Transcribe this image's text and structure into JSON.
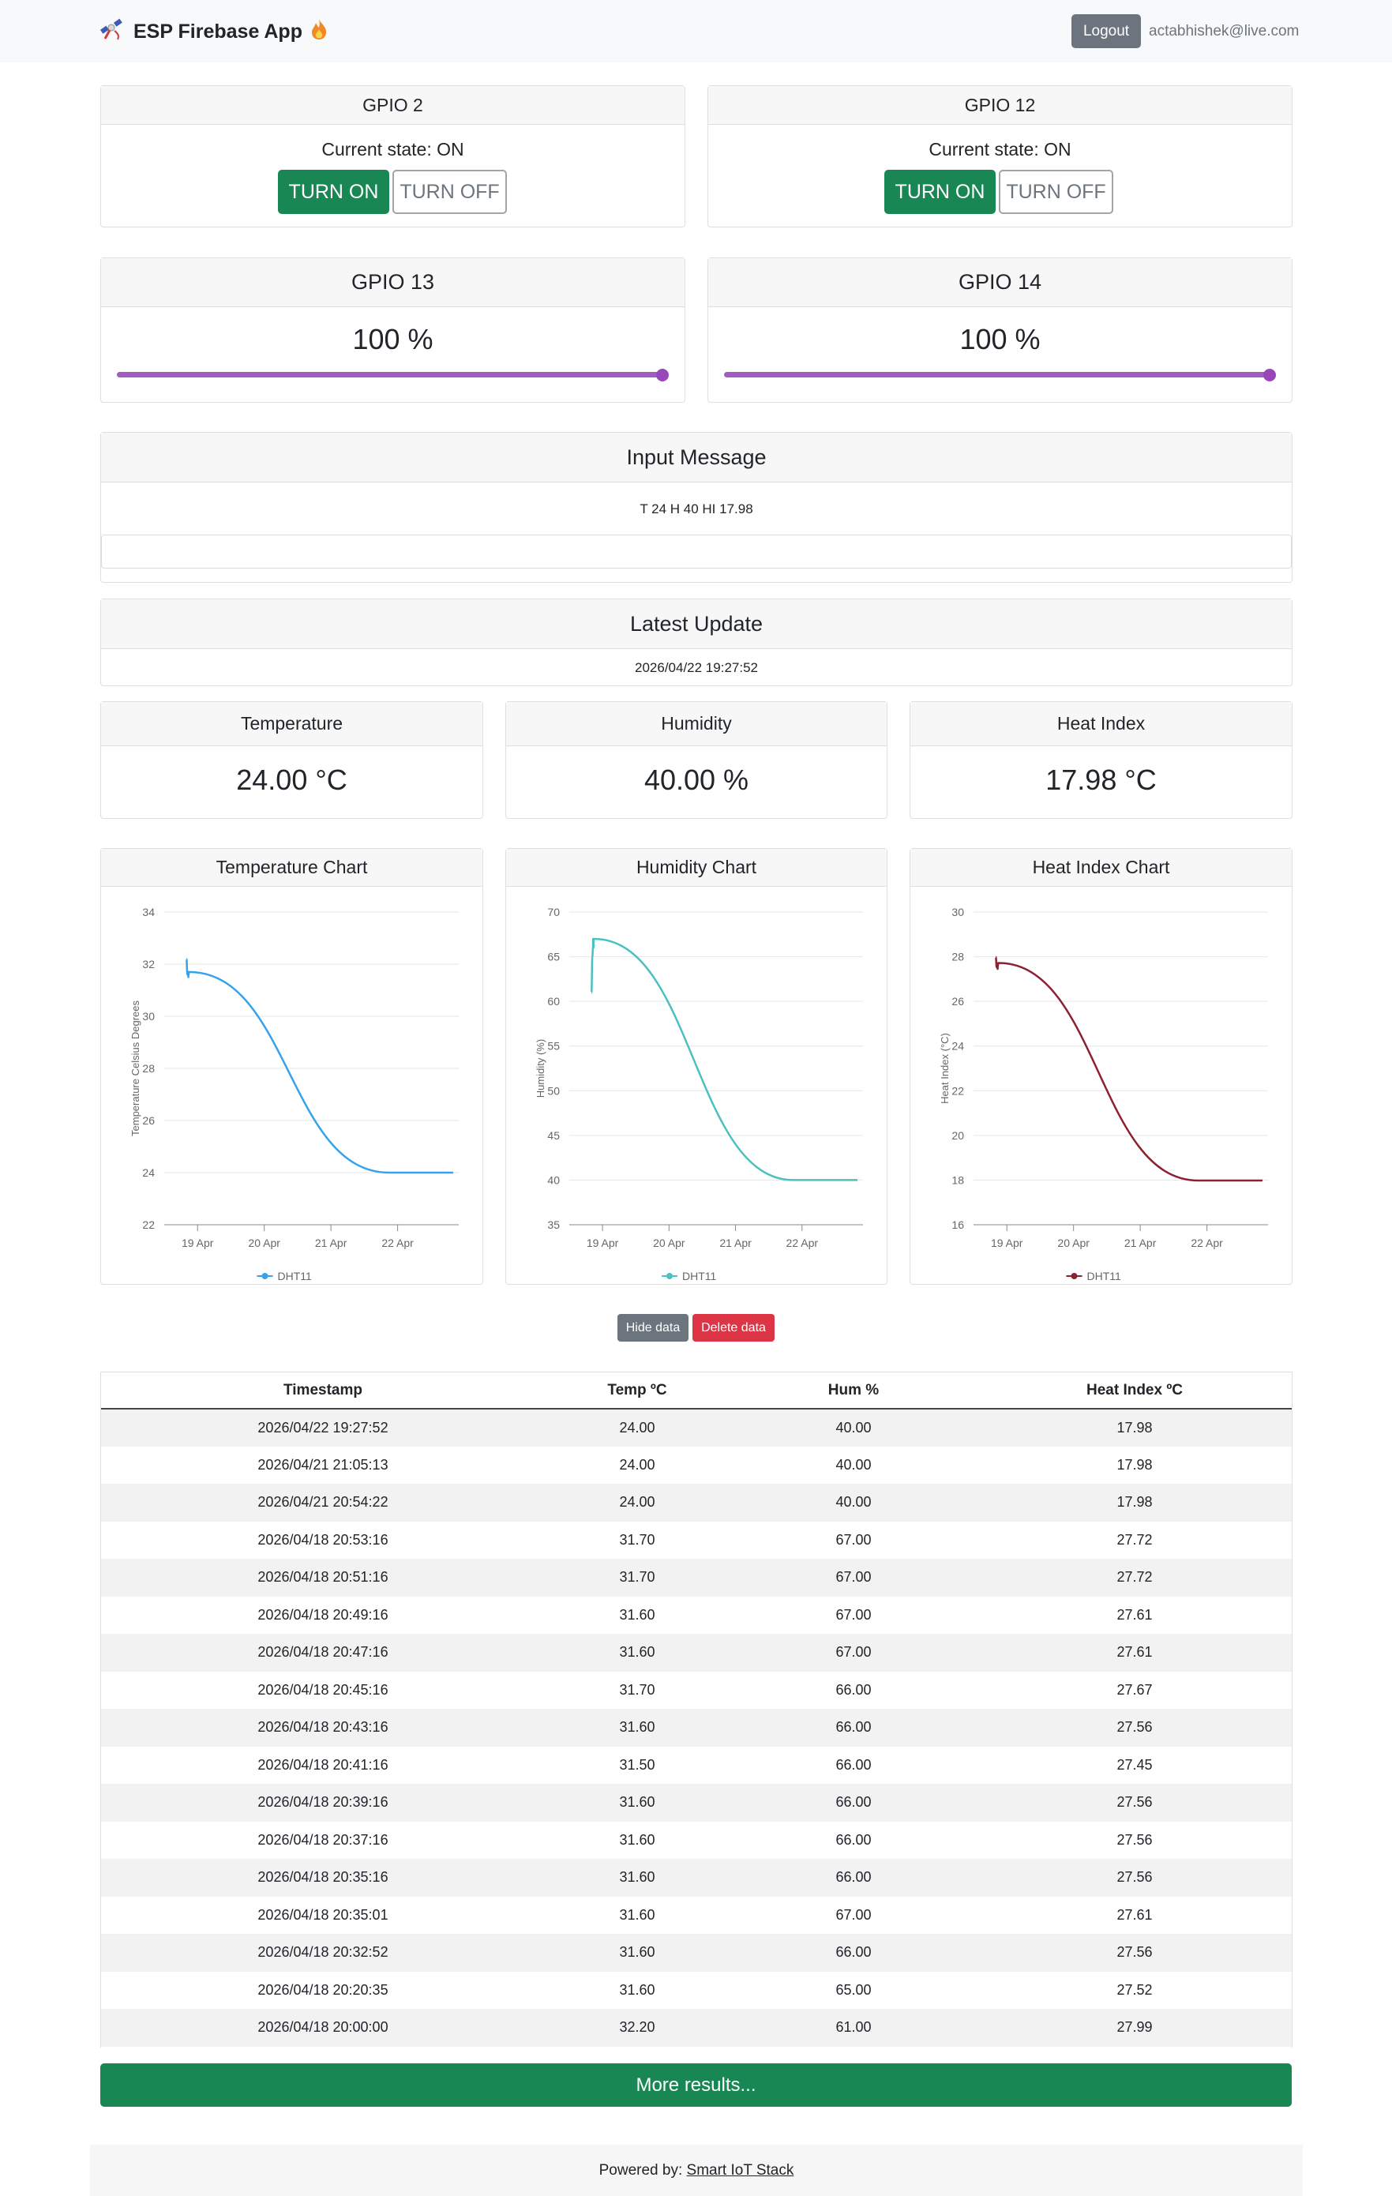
{
  "app": {
    "title": "ESP Firebase App",
    "logout_label": "Logout",
    "user_email": "actabhishek@live.com"
  },
  "gpio_switches": [
    {
      "name": "GPIO 2",
      "state_text": "Current state: ON",
      "on_label": "TURN ON",
      "off_label": "TURN OFF"
    },
    {
      "name": "GPIO 12",
      "state_text": "Current state: ON",
      "on_label": "TURN ON",
      "off_label": "TURN OFF"
    }
  ],
  "gpio_sliders": [
    {
      "name": "GPIO 13",
      "value_text": "100 %",
      "value": 100
    },
    {
      "name": "GPIO 14",
      "value_text": "100 %",
      "value": 100
    }
  ],
  "input_message": {
    "title": "Input Message",
    "text": "T 24 H 40 HI 17.98",
    "input_value": ""
  },
  "latest_update": {
    "title": "Latest Update",
    "timestamp": "2026/04/22 19:27:52"
  },
  "readings": [
    {
      "title": "Temperature",
      "value": "24.00 °C"
    },
    {
      "title": "Humidity",
      "value": "40.00 %"
    },
    {
      "title": "Heat Index",
      "value": "17.98 °C"
    }
  ],
  "chart_data": [
    {
      "type": "line",
      "title": "Temperature Chart",
      "ylabel": "Temperature Celsius Degrees",
      "ylim": [
        22,
        34
      ],
      "yticks": [
        "22",
        "24",
        "26",
        "28",
        "30",
        "32",
        "34"
      ],
      "xticks": [
        "19 Apr",
        "20 Apr",
        "21 Apr",
        "22 Apr"
      ],
      "x": [
        "2026/04/18 20:00:00",
        "2026/04/18 20:20:35",
        "2026/04/18 20:32:52",
        "2026/04/18 20:35:01",
        "2026/04/18 20:35:16",
        "2026/04/18 20:37:16",
        "2026/04/18 20:39:16",
        "2026/04/18 20:41:16",
        "2026/04/18 20:43:16",
        "2026/04/18 20:45:16",
        "2026/04/18 20:47:16",
        "2026/04/18 20:49:16",
        "2026/04/18 20:51:16",
        "2026/04/18 20:53:16",
        "2026/04/21 20:54:22",
        "2026/04/21 21:05:13",
        "2026/04/22 19:27:52"
      ],
      "series": [
        {
          "name": "DHT11",
          "color": "#36a2eb",
          "values": [
            32.2,
            31.6,
            31.6,
            31.6,
            31.6,
            31.6,
            31.6,
            31.5,
            31.6,
            31.7,
            31.6,
            31.6,
            31.7,
            31.7,
            24.0,
            24.0,
            24.0
          ]
        }
      ]
    },
    {
      "type": "line",
      "title": "Humidity Chart",
      "ylabel": "Humidity (%)",
      "ylim": [
        35,
        70
      ],
      "yticks": [
        "35",
        "40",
        "45",
        "50",
        "55",
        "60",
        "65",
        "70"
      ],
      "xticks": [
        "19 Apr",
        "20 Apr",
        "21 Apr",
        "22 Apr"
      ],
      "x": [
        "2026/04/18 20:00:00",
        "2026/04/18 20:20:35",
        "2026/04/18 20:32:52",
        "2026/04/18 20:35:01",
        "2026/04/18 20:35:16",
        "2026/04/18 20:37:16",
        "2026/04/18 20:39:16",
        "2026/04/18 20:41:16",
        "2026/04/18 20:43:16",
        "2026/04/18 20:45:16",
        "2026/04/18 20:47:16",
        "2026/04/18 20:49:16",
        "2026/04/18 20:51:16",
        "2026/04/18 20:53:16",
        "2026/04/21 20:54:22",
        "2026/04/21 21:05:13",
        "2026/04/22 19:27:52"
      ],
      "series": [
        {
          "name": "DHT11",
          "color": "#4bc0c0",
          "values": [
            61,
            65,
            66,
            67,
            66,
            66,
            66,
            66,
            66,
            66,
            67,
            67,
            67,
            67,
            40,
            40,
            40
          ]
        }
      ]
    },
    {
      "type": "line",
      "title": "Heat Index Chart",
      "ylabel": "Heat Index (°C)",
      "ylim": [
        16,
        30
      ],
      "yticks": [
        "16",
        "18",
        "20",
        "22",
        "24",
        "26",
        "28",
        "30"
      ],
      "xticks": [
        "19 Apr",
        "20 Apr",
        "21 Apr",
        "22 Apr"
      ],
      "x": [
        "2026/04/18 20:00:00",
        "2026/04/18 20:20:35",
        "2026/04/18 20:32:52",
        "2026/04/18 20:35:01",
        "2026/04/18 20:35:16",
        "2026/04/18 20:37:16",
        "2026/04/18 20:39:16",
        "2026/04/18 20:41:16",
        "2026/04/18 20:43:16",
        "2026/04/18 20:45:16",
        "2026/04/18 20:47:16",
        "2026/04/18 20:49:16",
        "2026/04/18 20:51:16",
        "2026/04/18 20:53:16",
        "2026/04/21 20:54:22",
        "2026/04/21 21:05:13",
        "2026/04/22 19:27:52"
      ],
      "series": [
        {
          "name": "DHT11",
          "color": "#8b2131",
          "values": [
            27.99,
            27.52,
            27.56,
            27.61,
            27.56,
            27.56,
            27.56,
            27.45,
            27.56,
            27.67,
            27.61,
            27.61,
            27.72,
            27.72,
            17.98,
            17.98,
            17.98
          ]
        }
      ]
    }
  ],
  "data_buttons": {
    "hide_label": "Hide data",
    "delete_label": "Delete data"
  },
  "table": {
    "headers": [
      "Timestamp",
      "Temp ºC",
      "Hum %",
      "Heat Index ºC"
    ],
    "rows": [
      [
        "2026/04/22 19:27:52",
        "24.00",
        "40.00",
        "17.98"
      ],
      [
        "2026/04/21 21:05:13",
        "24.00",
        "40.00",
        "17.98"
      ],
      [
        "2026/04/21 20:54:22",
        "24.00",
        "40.00",
        "17.98"
      ],
      [
        "2026/04/18 20:53:16",
        "31.70",
        "67.00",
        "27.72"
      ],
      [
        "2026/04/18 20:51:16",
        "31.70",
        "67.00",
        "27.72"
      ],
      [
        "2026/04/18 20:49:16",
        "31.60",
        "67.00",
        "27.61"
      ],
      [
        "2026/04/18 20:47:16",
        "31.60",
        "67.00",
        "27.61"
      ],
      [
        "2026/04/18 20:45:16",
        "31.70",
        "66.00",
        "27.67"
      ],
      [
        "2026/04/18 20:43:16",
        "31.60",
        "66.00",
        "27.56"
      ],
      [
        "2026/04/18 20:41:16",
        "31.50",
        "66.00",
        "27.45"
      ],
      [
        "2026/04/18 20:39:16",
        "31.60",
        "66.00",
        "27.56"
      ],
      [
        "2026/04/18 20:37:16",
        "31.60",
        "66.00",
        "27.56"
      ],
      [
        "2026/04/18 20:35:16",
        "31.60",
        "66.00",
        "27.56"
      ],
      [
        "2026/04/18 20:35:01",
        "31.60",
        "67.00",
        "27.61"
      ],
      [
        "2026/04/18 20:32:52",
        "31.60",
        "66.00",
        "27.56"
      ],
      [
        "2026/04/18 20:20:35",
        "31.60",
        "65.00",
        "27.52"
      ],
      [
        "2026/04/18 20:00:00",
        "32.20",
        "61.00",
        "27.99"
      ]
    ]
  },
  "more_results_label": "More results...",
  "footer": {
    "prefix": "Powered by: ",
    "link_text": "Smart IoT Stack"
  }
}
